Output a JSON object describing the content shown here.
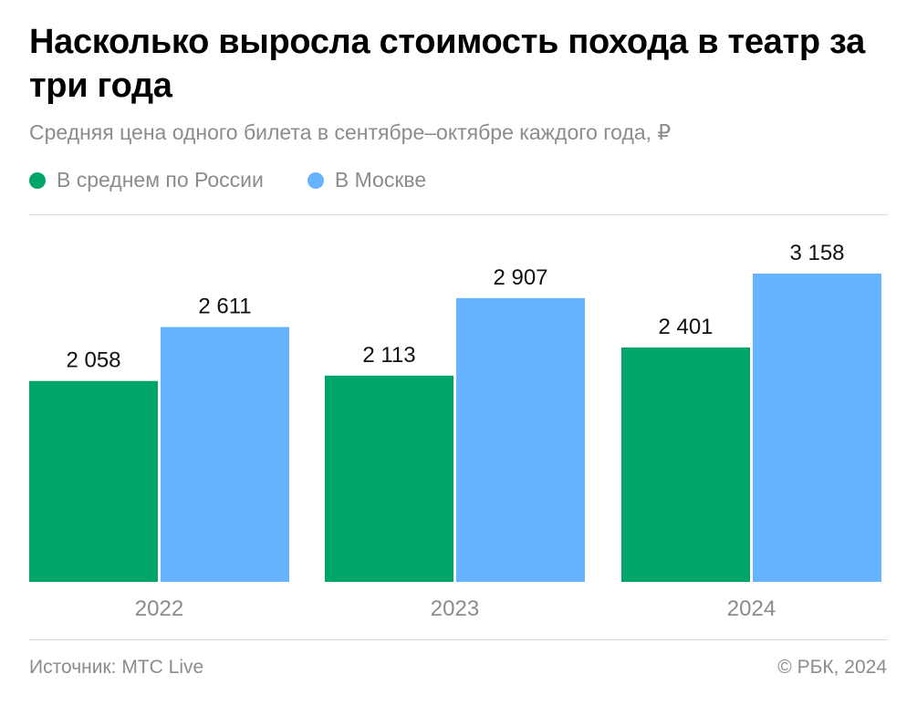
{
  "header": {
    "title": "Насколько выросла стоимость похода в театр за три года",
    "subtitle": "Средняя цена одного билета в сентябре–октябре каждого года, ₽"
  },
  "legend": [
    {
      "label": "В среднем по России",
      "color": "#00a569"
    },
    {
      "label": "В Москве",
      "color": "#66b3ff"
    }
  ],
  "chart_data": {
    "type": "bar",
    "categories": [
      "2022",
      "2023",
      "2024"
    ],
    "series": [
      {
        "name": "В среднем по России",
        "values": [
          2058,
          2113,
          2401
        ],
        "labels": [
          "2 058",
          "2 113",
          "2 401"
        ],
        "color": "#00a569"
      },
      {
        "name": "В Москве",
        "values": [
          2611,
          2907,
          3158
        ],
        "labels": [
          "2 611",
          "2 907",
          "3 158"
        ],
        "color": "#66b3ff"
      }
    ],
    "title": "Насколько выросла стоимость похода в театр за три года",
    "subtitle": "Средняя цена одного билета в сентябре–октябре каждого года, ₽",
    "ylim": [
      0,
      3500
    ],
    "grid": false,
    "legend_position": "top-left"
  },
  "footer": {
    "source": "Источник: МТС Live",
    "copyright": "© РБК, 2024"
  }
}
